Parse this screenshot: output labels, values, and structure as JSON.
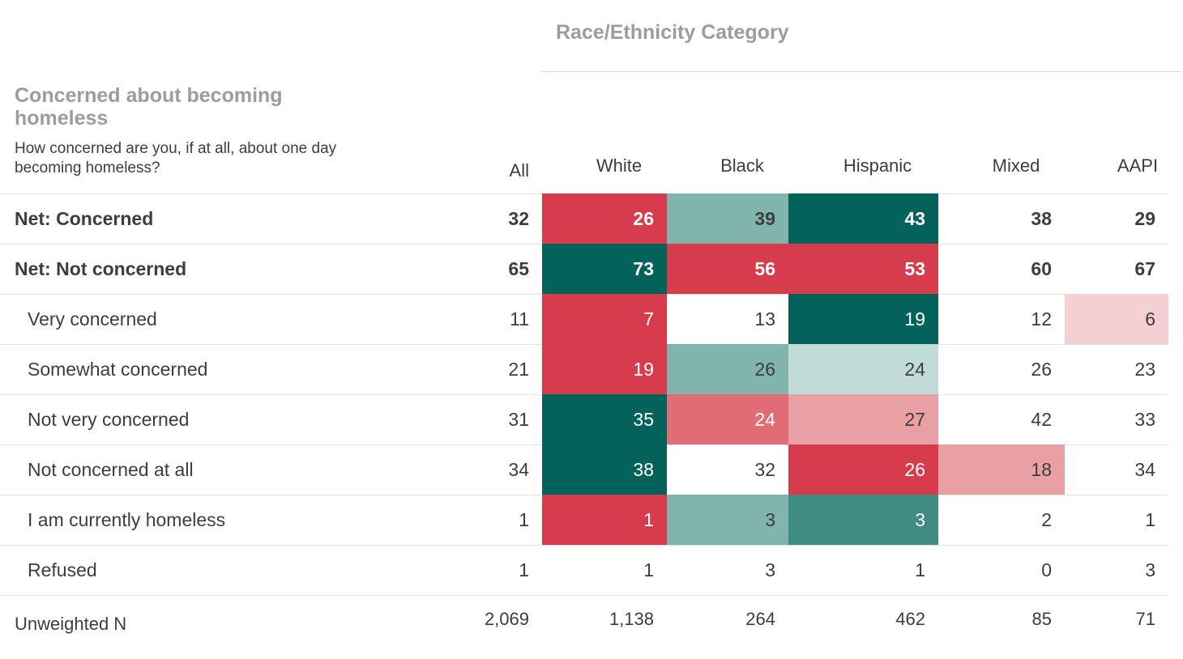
{
  "table": {
    "group_title": "Race/Ethnicity Category",
    "question_title": "Concerned about becoming homeless",
    "question_text": "How concerned are you, if at all, about one day becoming homeless?",
    "columns": [
      "All",
      "White",
      "Black",
      "Hispanic",
      "Mixed",
      "AAPI"
    ],
    "rows": [
      {
        "label": "Net: Concerned",
        "bold": true,
        "values": [
          "32",
          "26",
          "39",
          "43",
          "38",
          "29"
        ]
      },
      {
        "label": "Net: Not concerned",
        "bold": true,
        "values": [
          "65",
          "73",
          "56",
          "53",
          "60",
          "67"
        ]
      },
      {
        "label": "Very concerned",
        "bold": false,
        "values": [
          "11",
          "7",
          "13",
          "19",
          "12",
          "6"
        ]
      },
      {
        "label": "Somewhat concerned",
        "bold": false,
        "values": [
          "21",
          "19",
          "26",
          "24",
          "26",
          "23"
        ]
      },
      {
        "label": "Not very concerned",
        "bold": false,
        "values": [
          "31",
          "35",
          "24",
          "27",
          "42",
          "33"
        ]
      },
      {
        "label": "Not concerned at all",
        "bold": false,
        "values": [
          "34",
          "38",
          "32",
          "26",
          "18",
          "34"
        ]
      },
      {
        "label": "I am currently homeless",
        "bold": false,
        "values": [
          "1",
          "1",
          "3",
          "3",
          "2",
          "1"
        ]
      },
      {
        "label": "Refused",
        "bold": false,
        "values": [
          "1",
          "1",
          "3",
          "1",
          "0",
          "3"
        ]
      }
    ],
    "footer": {
      "label": "Unweighted N",
      "values": [
        "2,069",
        "1,138",
        "264",
        "462",
        "85",
        "71"
      ]
    }
  },
  "colors": {
    "strong_red": "#d63c4c",
    "mid_red": "#e06c76",
    "light_red": "#e9a0a5",
    "pale_red": "#f4cfd3",
    "strong_teal": "#03635a",
    "mid_teal": "#3f8a81",
    "light_teal": "#80b4ad",
    "pale_teal": "#c1dcd7"
  },
  "cell_shading": [
    [
      "none",
      "strong_red",
      "light_teal",
      "strong_teal",
      "none",
      "none"
    ],
    [
      "none",
      "strong_teal",
      "strong_red",
      "strong_red",
      "none",
      "none"
    ],
    [
      "none",
      "strong_red",
      "none",
      "strong_teal",
      "none",
      "pale_red"
    ],
    [
      "none",
      "strong_red",
      "light_teal",
      "pale_teal",
      "none",
      "none"
    ],
    [
      "none",
      "strong_teal",
      "mid_red",
      "light_red",
      "none",
      "none"
    ],
    [
      "none",
      "strong_teal",
      "none",
      "strong_red",
      "light_red",
      "none"
    ],
    [
      "none",
      "strong_red",
      "light_teal",
      "mid_teal",
      "none",
      "none"
    ],
    [
      "none",
      "none",
      "none",
      "none",
      "none",
      "none"
    ]
  ],
  "chart_data": {
    "type": "table",
    "title": "Concerned about becoming homeless",
    "categories": [
      "All",
      "White",
      "Black",
      "Hispanic",
      "Mixed",
      "AAPI"
    ],
    "series": [
      {
        "name": "Net: Concerned",
        "values": [
          32,
          26,
          39,
          43,
          38,
          29
        ]
      },
      {
        "name": "Net: Not concerned",
        "values": [
          65,
          73,
          56,
          53,
          60,
          67
        ]
      },
      {
        "name": "Very concerned",
        "values": [
          11,
          7,
          13,
          19,
          12,
          6
        ]
      },
      {
        "name": "Somewhat concerned",
        "values": [
          21,
          19,
          26,
          24,
          26,
          23
        ]
      },
      {
        "name": "Not very concerned",
        "values": [
          31,
          35,
          24,
          27,
          42,
          33
        ]
      },
      {
        "name": "Not concerned at all",
        "values": [
          34,
          38,
          32,
          26,
          18,
          34
        ]
      },
      {
        "name": "I am currently homeless",
        "values": [
          1,
          1,
          3,
          3,
          2,
          1
        ]
      },
      {
        "name": "Refused",
        "values": [
          1,
          1,
          3,
          1,
          0,
          3
        ]
      },
      {
        "name": "Unweighted N",
        "values": [
          2069,
          1138,
          264,
          462,
          85,
          71
        ]
      }
    ]
  }
}
